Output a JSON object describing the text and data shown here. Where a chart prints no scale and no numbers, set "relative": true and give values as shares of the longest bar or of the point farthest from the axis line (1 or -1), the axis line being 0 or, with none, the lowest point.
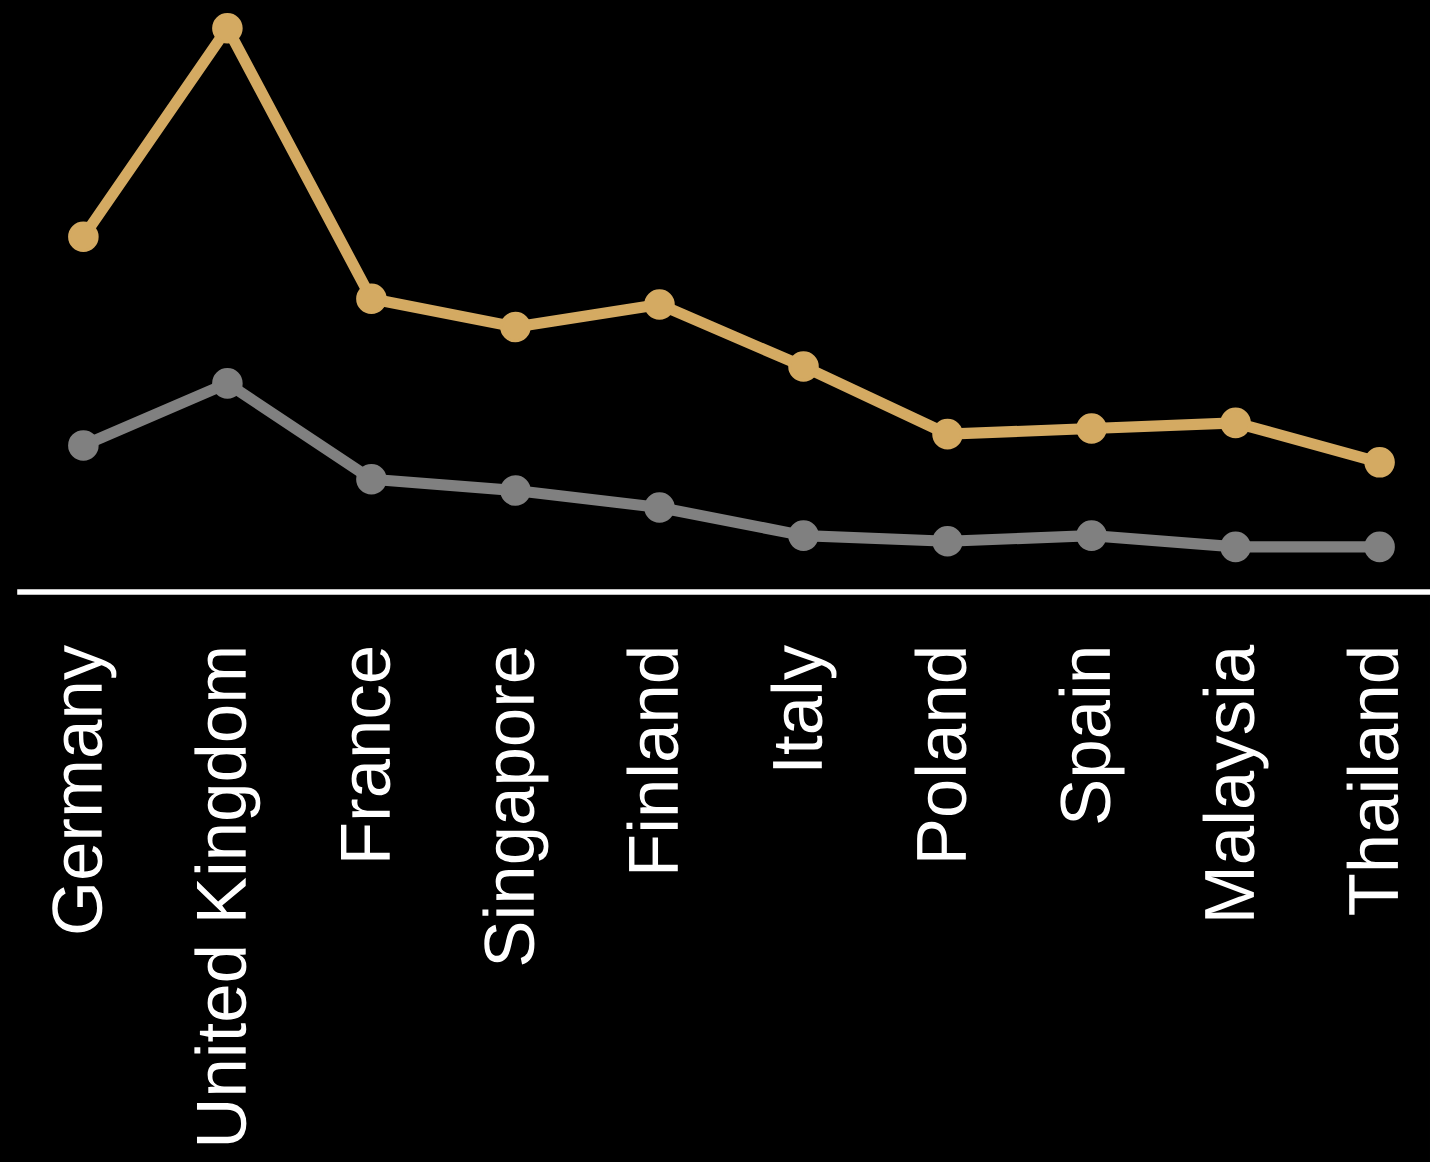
{
  "chart_data": {
    "type": "line",
    "relative": true,
    "categories": [
      "Germany",
      "United Kingdom",
      "France",
      "Singapore",
      "Finland",
      "Italy",
      "Poland",
      "Spain",
      "Malaysia",
      "Thailand"
    ],
    "series": [
      {
        "color": "#d4aa62",
        "values": [
          0.63,
          1,
          0.52,
          0.47,
          0.51,
          0.4,
          0.28,
          0.29,
          0.3,
          0.23
        ]
      },
      {
        "color": "#808080",
        "values": [
          0.26,
          0.37,
          0.2,
          0.18,
          0.15,
          0.1,
          0.09,
          0.1,
          0.08,
          0.08
        ]
      }
    ],
    "marker": "circle",
    "line_style": "solid",
    "grid": false,
    "legend": false
  }
}
